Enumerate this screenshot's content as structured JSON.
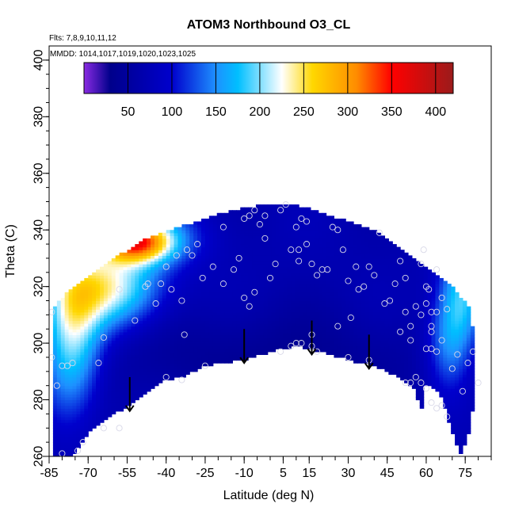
{
  "chart_data": {
    "type": "heatmap",
    "title": "ATOM3 Northbound O3_CL",
    "subtitle_flights": "Flts: 7,8,9,10,11,12",
    "subtitle_dates": "MMDD: 1014,1017,1019,1020,1023,1025",
    "xlabel": "Latitude (deg N)",
    "ylabel": "Theta (C)",
    "xlim": [
      -85,
      85
    ],
    "ylim": [
      260,
      405
    ],
    "x_ticks": [
      -85,
      -70,
      -55,
      -40,
      -25,
      -10,
      5,
      15,
      30,
      45,
      60,
      75
    ],
    "y_ticks": [
      260,
      280,
      300,
      320,
      340,
      360,
      380,
      400
    ],
    "colorbar": {
      "range": [
        0,
        420
      ],
      "ticks": [
        50,
        100,
        150,
        200,
        250,
        300,
        350,
        400
      ],
      "stops": [
        {
          "v": 0,
          "c": "#8a2be2"
        },
        {
          "v": 30,
          "c": "#00008b"
        },
        {
          "v": 100,
          "c": "#0000cd"
        },
        {
          "v": 150,
          "c": "#1e90ff"
        },
        {
          "v": 175,
          "c": "#00bfff"
        },
        {
          "v": 225,
          "c": "#ffffff"
        },
        {
          "v": 260,
          "c": "#ffd700"
        },
        {
          "v": 310,
          "c": "#ff8c00"
        },
        {
          "v": 350,
          "c": "#ff0000"
        },
        {
          "v": 420,
          "c": "#9b1b1b"
        }
      ]
    },
    "lower_boundary": [
      [
        -76,
        260
      ],
      [
        -70,
        268
      ],
      [
        -62,
        274
      ],
      [
        -54,
        278
      ],
      [
        -40,
        287
      ],
      [
        -34,
        288
      ],
      [
        -25,
        292
      ],
      [
        -10,
        294
      ],
      [
        0,
        297
      ],
      [
        10,
        299
      ],
      [
        20,
        297
      ],
      [
        30,
        294
      ],
      [
        40,
        292
      ],
      [
        50,
        288
      ],
      [
        56,
        283
      ],
      [
        58,
        276
      ],
      [
        60,
        286
      ],
      [
        65,
        283
      ],
      [
        73,
        260
      ]
    ],
    "upper_boundary": [
      [
        -84,
        260
      ],
      [
        -84,
        312
      ],
      [
        -78,
        318
      ],
      [
        -70,
        324
      ],
      [
        -60,
        330
      ],
      [
        -48,
        337
      ],
      [
        -35,
        341
      ],
      [
        -22,
        345
      ],
      [
        -10,
        348
      ],
      [
        0,
        349
      ],
      [
        10,
        349
      ],
      [
        20,
        346
      ],
      [
        30,
        343
      ],
      [
        40,
        340
      ],
      [
        50,
        334
      ],
      [
        60,
        327
      ],
      [
        70,
        320
      ],
      [
        77,
        312
      ],
      [
        79,
        297
      ],
      [
        79,
        287
      ],
      [
        77,
        270
      ],
      [
        73,
        260
      ]
    ],
    "arrows": [
      [
        -54,
        282
      ],
      [
        -10,
        299
      ],
      [
        16,
        302
      ],
      [
        38,
        297
      ]
    ],
    "observations": [
      [
        -84,
        311
      ],
      [
        -84,
        295
      ],
      [
        -82,
        285
      ],
      [
        -80,
        292
      ],
      [
        -78,
        292
      ],
      [
        -76,
        293
      ],
      [
        -74,
        262
      ],
      [
        -80,
        261
      ],
      [
        -66,
        293
      ],
      [
        -64,
        302
      ],
      [
        -64,
        270
      ],
      [
        -58,
        319
      ],
      [
        -52,
        308
      ],
      [
        -48,
        320
      ],
      [
        -47,
        321
      ],
      [
        -44,
        314
      ],
      [
        -42,
        321
      ],
      [
        -40,
        327
      ],
      [
        -38,
        319
      ],
      [
        -36,
        331
      ],
      [
        -34,
        315
      ],
      [
        -33,
        303
      ],
      [
        -32,
        333
      ],
      [
        -30,
        331
      ],
      [
        -28,
        335
      ],
      [
        -26,
        323
      ],
      [
        -22,
        327
      ],
      [
        -18,
        321
      ],
      [
        -18,
        341
      ],
      [
        -14,
        326
      ],
      [
        -12,
        330
      ],
      [
        -10,
        344
      ],
      [
        -8,
        345
      ],
      [
        -6,
        347
      ],
      [
        -2,
        345
      ],
      [
        -2,
        337
      ],
      [
        0,
        323
      ],
      [
        -4,
        342
      ],
      [
        2,
        328
      ],
      [
        4,
        347
      ],
      [
        6,
        349
      ],
      [
        8,
        333
      ],
      [
        10,
        341
      ],
      [
        11,
        329
      ],
      [
        11,
        333
      ],
      [
        12,
        344
      ],
      [
        14,
        335
      ],
      [
        14,
        343
      ],
      [
        16,
        328
      ],
      [
        18,
        324
      ],
      [
        20,
        326
      ],
      [
        22,
        326
      ],
      [
        24,
        341
      ],
      [
        26,
        340
      ],
      [
        28,
        333
      ],
      [
        30,
        322
      ],
      [
        31,
        309
      ],
      [
        33,
        327
      ],
      [
        34,
        319
      ],
      [
        36,
        320
      ],
      [
        38,
        327
      ],
      [
        40,
        324
      ],
      [
        42,
        339
      ],
      [
        44,
        314
      ],
      [
        46,
        315
      ],
      [
        48,
        321
      ],
      [
        50,
        329
      ],
      [
        50,
        304
      ],
      [
        52,
        311
      ],
      [
        52,
        323
      ],
      [
        54,
        306
      ],
      [
        54,
        301
      ],
      [
        56,
        313
      ],
      [
        58,
        310
      ],
      [
        58,
        328
      ],
      [
        59,
        333
      ],
      [
        60,
        320
      ],
      [
        60,
        314
      ],
      [
        61,
        319
      ],
      [
        62,
        311
      ],
      [
        62,
        306
      ],
      [
        62,
        304
      ],
      [
        64,
        326
      ],
      [
        64,
        311
      ],
      [
        66,
        316
      ],
      [
        66,
        301
      ],
      [
        68,
        312
      ],
      [
        70,
        291
      ],
      [
        72,
        296
      ],
      [
        74,
        283
      ],
      [
        76,
        293
      ],
      [
        78,
        297
      ],
      [
        80,
        286
      ],
      [
        38,
        294
      ],
      [
        30,
        295
      ],
      [
        10,
        300
      ],
      [
        12,
        300
      ],
      [
        8,
        299
      ],
      [
        4,
        297
      ],
      [
        16,
        299
      ],
      [
        52,
        286
      ],
      [
        54,
        286
      ],
      [
        56,
        288
      ],
      [
        58,
        286
      ],
      [
        60,
        284
      ],
      [
        64,
        277
      ],
      [
        68,
        274
      ],
      [
        62,
        298
      ],
      [
        64,
        297
      ],
      [
        60,
        298
      ],
      [
        62,
        279
      ],
      [
        66,
        278
      ],
      [
        -8,
        313
      ],
      [
        -10,
        316
      ],
      [
        -6,
        318
      ],
      [
        26,
        306
      ],
      [
        16,
        303
      ],
      [
        18,
        297
      ],
      [
        -40,
        288
      ],
      [
        -34,
        287
      ],
      [
        -25,
        292
      ],
      [
        -58,
        270
      ],
      [
        -72,
        265
      ]
    ]
  }
}
